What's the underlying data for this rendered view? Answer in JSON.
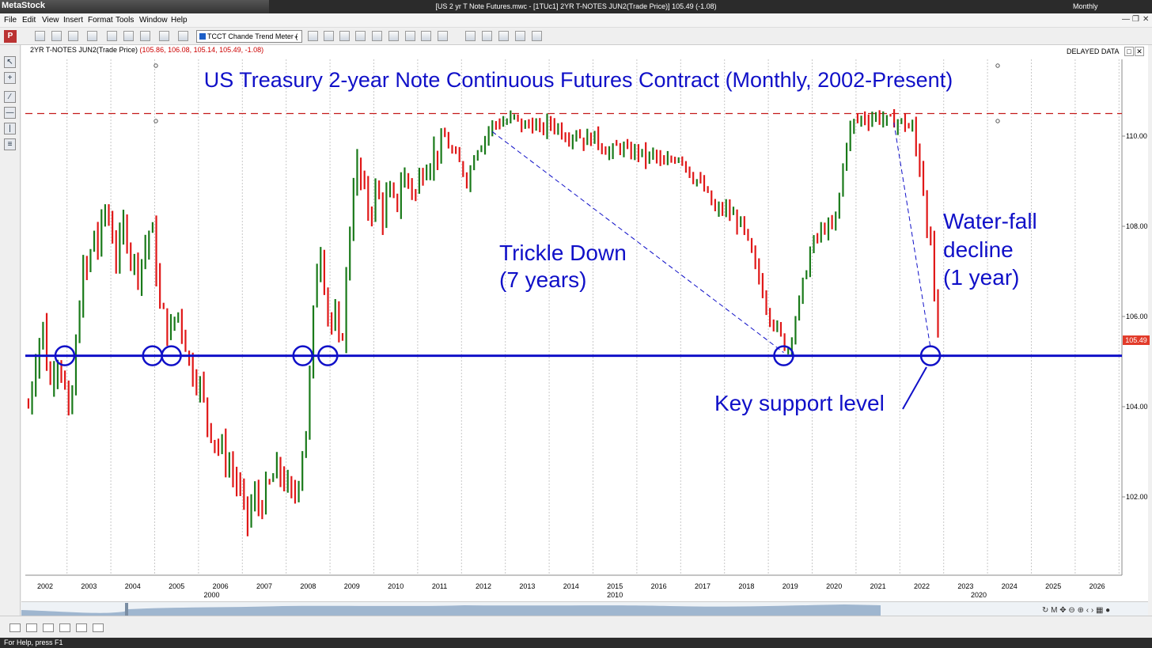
{
  "app": {
    "name": "MetaStock",
    "window_title": "[US 2 yr T Note Futures.mwc - [1TUc1] 2YR T-NOTES JUN2(Trade Price)]   105.49 (-1.08)",
    "period": "Monthly"
  },
  "menu": [
    "File",
    "Edit",
    "View",
    "Insert",
    "Format",
    "Tools",
    "Window",
    "Help"
  ],
  "toolbar": {
    "indicator_select": "TCCT Chande Trend Meter ("
  },
  "chart_header": {
    "symbol": "2YR T-NOTES JUN2(Trade Price)",
    "values": "(105.86, 106.08, 105.14, 105.49, -1.08)",
    "delayed": "DELAYED DATA"
  },
  "chart_data": {
    "type": "ohlc",
    "title": "US Treasury 2-year Note Continuous Futures Contract (Monthly, 2002-Present)",
    "y_ticks": [
      "110.00",
      "108.00",
      "106.00",
      "104.00",
      "102.00"
    ],
    "ylim": [
      100.2,
      111.4
    ],
    "x_ticks": [
      "2002",
      "2003",
      "2004",
      "2005",
      "2006",
      "2007",
      "2008",
      "2009",
      "2010",
      "2011",
      "2012",
      "2013",
      "2014",
      "2015",
      "2016",
      "2017",
      "2018",
      "2019",
      "2020",
      "2021",
      "2022",
      "2023",
      "2024",
      "2025",
      "2026"
    ],
    "x_major": [
      {
        "label": "2000",
        "year": 2005.8
      },
      {
        "label": "2010",
        "year": 2015.0
      },
      {
        "label": "2020",
        "year": 2023.3
      }
    ],
    "last_price": "105.49",
    "resistance_level": 110.5,
    "support_level": 105.13,
    "price_path": [
      [
        2001.62,
        104.0
      ],
      [
        2001.8,
        105.2
      ],
      [
        2001.95,
        105.8
      ],
      [
        2002.1,
        104.4
      ],
      [
        2002.25,
        105.2
      ],
      [
        2002.4,
        104.8
      ],
      [
        2002.55,
        103.5
      ],
      [
        2002.7,
        105.3
      ],
      [
        2002.85,
        107.0
      ],
      [
        2003.0,
        107.0
      ],
      [
        2003.1,
        108.0
      ],
      [
        2003.2,
        107.5
      ],
      [
        2003.35,
        108.4
      ],
      [
        2003.5,
        108.0
      ],
      [
        2003.65,
        107.2
      ],
      [
        2003.8,
        108.1
      ],
      [
        2003.95,
        107.4
      ],
      [
        2004.1,
        107.0
      ],
      [
        2004.25,
        107.4
      ],
      [
        2004.4,
        108.0
      ],
      [
        2004.5,
        107.6
      ],
      [
        2004.6,
        106.2
      ],
      [
        2004.75,
        105.9
      ],
      [
        2004.85,
        105.5
      ],
      [
        2005.0,
        106.2
      ],
      [
        2005.15,
        105.7
      ],
      [
        2005.3,
        104.9
      ],
      [
        2005.5,
        104.6
      ],
      [
        2005.7,
        103.7
      ],
      [
        2005.9,
        103.2
      ],
      [
        2006.1,
        102.9
      ],
      [
        2006.3,
        102.5
      ],
      [
        2006.5,
        101.9
      ],
      [
        2006.6,
        101.4
      ],
      [
        2006.75,
        102.0
      ],
      [
        2006.9,
        101.8
      ],
      [
        2007.1,
        102.2
      ],
      [
        2007.3,
        102.6
      ],
      [
        2007.5,
        102.3
      ],
      [
        2007.65,
        101.8
      ],
      [
        2007.8,
        102.6
      ],
      [
        2007.95,
        103.5
      ],
      [
        2008.05,
        104.8
      ],
      [
        2008.15,
        106.5
      ],
      [
        2008.25,
        107.8
      ],
      [
        2008.35,
        107.0
      ],
      [
        2008.5,
        105.7
      ],
      [
        2008.6,
        106.0
      ],
      [
        2008.7,
        105.3
      ],
      [
        2008.8,
        105.8
      ],
      [
        2008.9,
        107.2
      ],
      [
        2009.0,
        108.7
      ],
      [
        2009.1,
        109.4
      ],
      [
        2009.25,
        108.8
      ],
      [
        2009.4,
        108.3
      ],
      [
        2009.55,
        108.8
      ],
      [
        2009.7,
        108.3
      ],
      [
        2009.85,
        108.7
      ],
      [
        2010.0,
        108.4
      ],
      [
        2010.15,
        109.1
      ],
      [
        2010.3,
        109.0
      ],
      [
        2010.45,
        108.7
      ],
      [
        2010.6,
        109.3
      ],
      [
        2010.75,
        109.5
      ],
      [
        2010.9,
        109.6
      ],
      [
        2011.1,
        110.0
      ],
      [
        2011.3,
        109.6
      ],
      [
        2011.5,
        109.3
      ],
      [
        2011.65,
        109.0
      ],
      [
        2011.8,
        109.7
      ],
      [
        2012.0,
        109.9
      ],
      [
        2012.15,
        110.2
      ],
      [
        2012.3,
        110.3
      ],
      [
        2012.5,
        110.3
      ],
      [
        2012.7,
        110.4
      ],
      [
        2012.9,
        110.2
      ],
      [
        2013.1,
        110.3
      ],
      [
        2013.3,
        110.1
      ],
      [
        2013.5,
        110.3
      ],
      [
        2013.7,
        110.2
      ],
      [
        2013.9,
        110.0
      ],
      [
        2014.1,
        110.1
      ],
      [
        2014.3,
        109.9
      ],
      [
        2014.5,
        110.0
      ],
      [
        2014.7,
        109.8
      ],
      [
        2014.9,
        109.6
      ],
      [
        2015.1,
        109.8
      ],
      [
        2015.3,
        109.6
      ],
      [
        2015.5,
        109.7
      ],
      [
        2015.7,
        109.5
      ],
      [
        2015.9,
        109.6
      ],
      [
        2016.1,
        109.3
      ],
      [
        2016.3,
        109.5
      ],
      [
        2016.5,
        109.6
      ],
      [
        2016.7,
        109.2
      ],
      [
        2016.9,
        109.0
      ],
      [
        2017.1,
        108.7
      ],
      [
        2017.3,
        108.3
      ],
      [
        2017.5,
        108.4
      ],
      [
        2017.7,
        108.2
      ],
      [
        2017.9,
        108.0
      ],
      [
        2018.1,
        107.4
      ],
      [
        2018.3,
        106.8
      ],
      [
        2018.5,
        106.1
      ],
      [
        2018.7,
        105.7
      ],
      [
        2018.85,
        105.4
      ],
      [
        2018.95,
        105.3
      ],
      [
        2019.05,
        105.7
      ],
      [
        2019.2,
        106.3
      ],
      [
        2019.35,
        107.0
      ],
      [
        2019.5,
        107.6
      ],
      [
        2019.65,
        107.8
      ],
      [
        2019.8,
        108.0
      ],
      [
        2019.95,
        107.9
      ],
      [
        2020.1,
        108.5
      ],
      [
        2020.2,
        109.3
      ],
      [
        2020.3,
        110.0
      ],
      [
        2020.45,
        110.3
      ],
      [
        2020.6,
        110.4
      ],
      [
        2020.8,
        110.4
      ],
      [
        2020.95,
        110.45
      ],
      [
        2021.1,
        110.4
      ],
      [
        2021.25,
        110.3
      ],
      [
        2021.4,
        110.35
      ],
      [
        2021.55,
        110.3
      ],
      [
        2021.7,
        110.2
      ],
      [
        2021.8,
        110.0
      ],
      [
        2021.9,
        109.6
      ],
      [
        2022.0,
        109.2
      ],
      [
        2022.1,
        108.3
      ],
      [
        2022.2,
        107.4
      ],
      [
        2022.3,
        106.3
      ],
      [
        2022.38,
        105.49
      ]
    ]
  },
  "annotations": {
    "trickle_1": "Trickle Down",
    "trickle_2": "(7 years)",
    "waterfall_1": "Water-fall",
    "waterfall_2": "decline",
    "waterfall_3": "(1 year)",
    "support": "Key support level"
  },
  "support_circle_years": [
    2002.45,
    2004.45,
    2004.88,
    2007.88,
    2008.45,
    2018.85,
    2022.2
  ],
  "colors": {
    "up": "#1a7a1a",
    "down": "#e01818",
    "annotation": "#1010c8",
    "resistance": "#c41a1a",
    "grid": "#c8c8c8"
  },
  "status": {
    "help": "For Help, press F1"
  }
}
